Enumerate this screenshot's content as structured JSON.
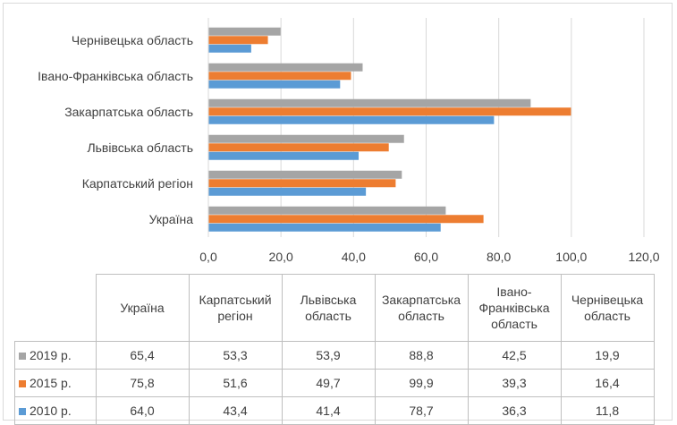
{
  "chart_data": {
    "type": "bar",
    "orientation": "horizontal",
    "categories": [
      "Україна",
      "Карпатський регіон",
      "Львівська область",
      "Закарпатська область",
      "Івано-Франківська область",
      "Чернівецька область"
    ],
    "series": [
      {
        "name": "2019 р.",
        "color": "#a5a5a5",
        "values": [
          65.4,
          53.3,
          53.9,
          88.8,
          42.5,
          19.9
        ],
        "labels": [
          "65,4",
          "53,3",
          "53,9",
          "88,8",
          "42,5",
          "19,9"
        ]
      },
      {
        "name": "2015 р.",
        "color": "#ed7d31",
        "values": [
          75.8,
          51.6,
          49.7,
          99.9,
          39.3,
          16.4
        ],
        "labels": [
          "75,8",
          "51,6",
          "49,7",
          "99,9",
          "39,3",
          "16,4"
        ]
      },
      {
        "name": "2010 р.",
        "color": "#5b9bd5",
        "values": [
          64.0,
          43.4,
          41.4,
          78.7,
          36.3,
          11.8
        ],
        "labels": [
          "64,0",
          "43,4",
          "41,4",
          "78,7",
          "36,3",
          "11,8"
        ]
      }
    ],
    "xlim": [
      0,
      120
    ],
    "ticks": [
      "0,0",
      "20,0",
      "40,0",
      "60,0",
      "80,0",
      "100,0",
      "120,0"
    ],
    "grid": true,
    "legend": "data-table-below",
    "table_headers": [
      "Україна",
      "Карпатський регіон",
      "Львівська область",
      "Закарпатська область",
      "Івано-Франківська область",
      "Чернівецька область"
    ]
  }
}
